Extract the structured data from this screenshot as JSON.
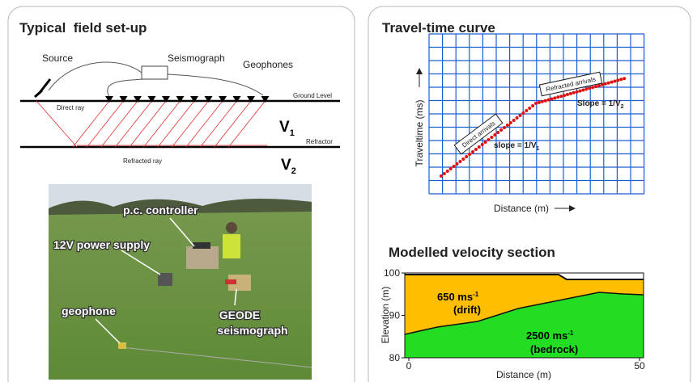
{
  "left_panel": {
    "title": "Typical  field set-up",
    "schematic": {
      "source": "Source",
      "seismograph": "Seismograph",
      "geophones": "Geophones",
      "ground_level": "Ground Level",
      "direct_ray": "Direct ray",
      "refractor": "Refractor",
      "refracted_ray": "Refracted ray",
      "layer1": {
        "symbol": "V",
        "subscript": "1"
      },
      "layer2": {
        "symbol": "V",
        "subscript": "2"
      }
    },
    "photo": {
      "pc_controller": "p.c. controller",
      "power_supply": "12V power supply",
      "geophone": "geophone",
      "geode": [
        "GEODE",
        "seismograph"
      ]
    }
  },
  "right_panel": {
    "travel_time": {
      "title": "Travel-time curve",
      "y_label": "Traveltime (ms)",
      "x_label": "Distance (m)",
      "direct_arrivals": "Direct arrivals",
      "refracted_arrivals": "Refracted arrivals",
      "slope1": {
        "text": "slope = 1/V",
        "subscript": "1"
      },
      "slope2": {
        "text": "Slope = 1/V",
        "subscript": "2"
      }
    },
    "velocity_section": {
      "title": "Modelled velocity section",
      "y_label": "Elevation (m)",
      "x_label": "Distance (m)",
      "yticks": [
        100,
        90,
        80
      ],
      "xticks": [
        0,
        50
      ],
      "drift": {
        "velocity": "650 ms",
        "superscript": "-1",
        "name": "(drift)"
      },
      "bedrock": {
        "velocity": "2500 ms",
        "superscript": "-1",
        "name": "(bedrock)"
      }
    }
  }
}
